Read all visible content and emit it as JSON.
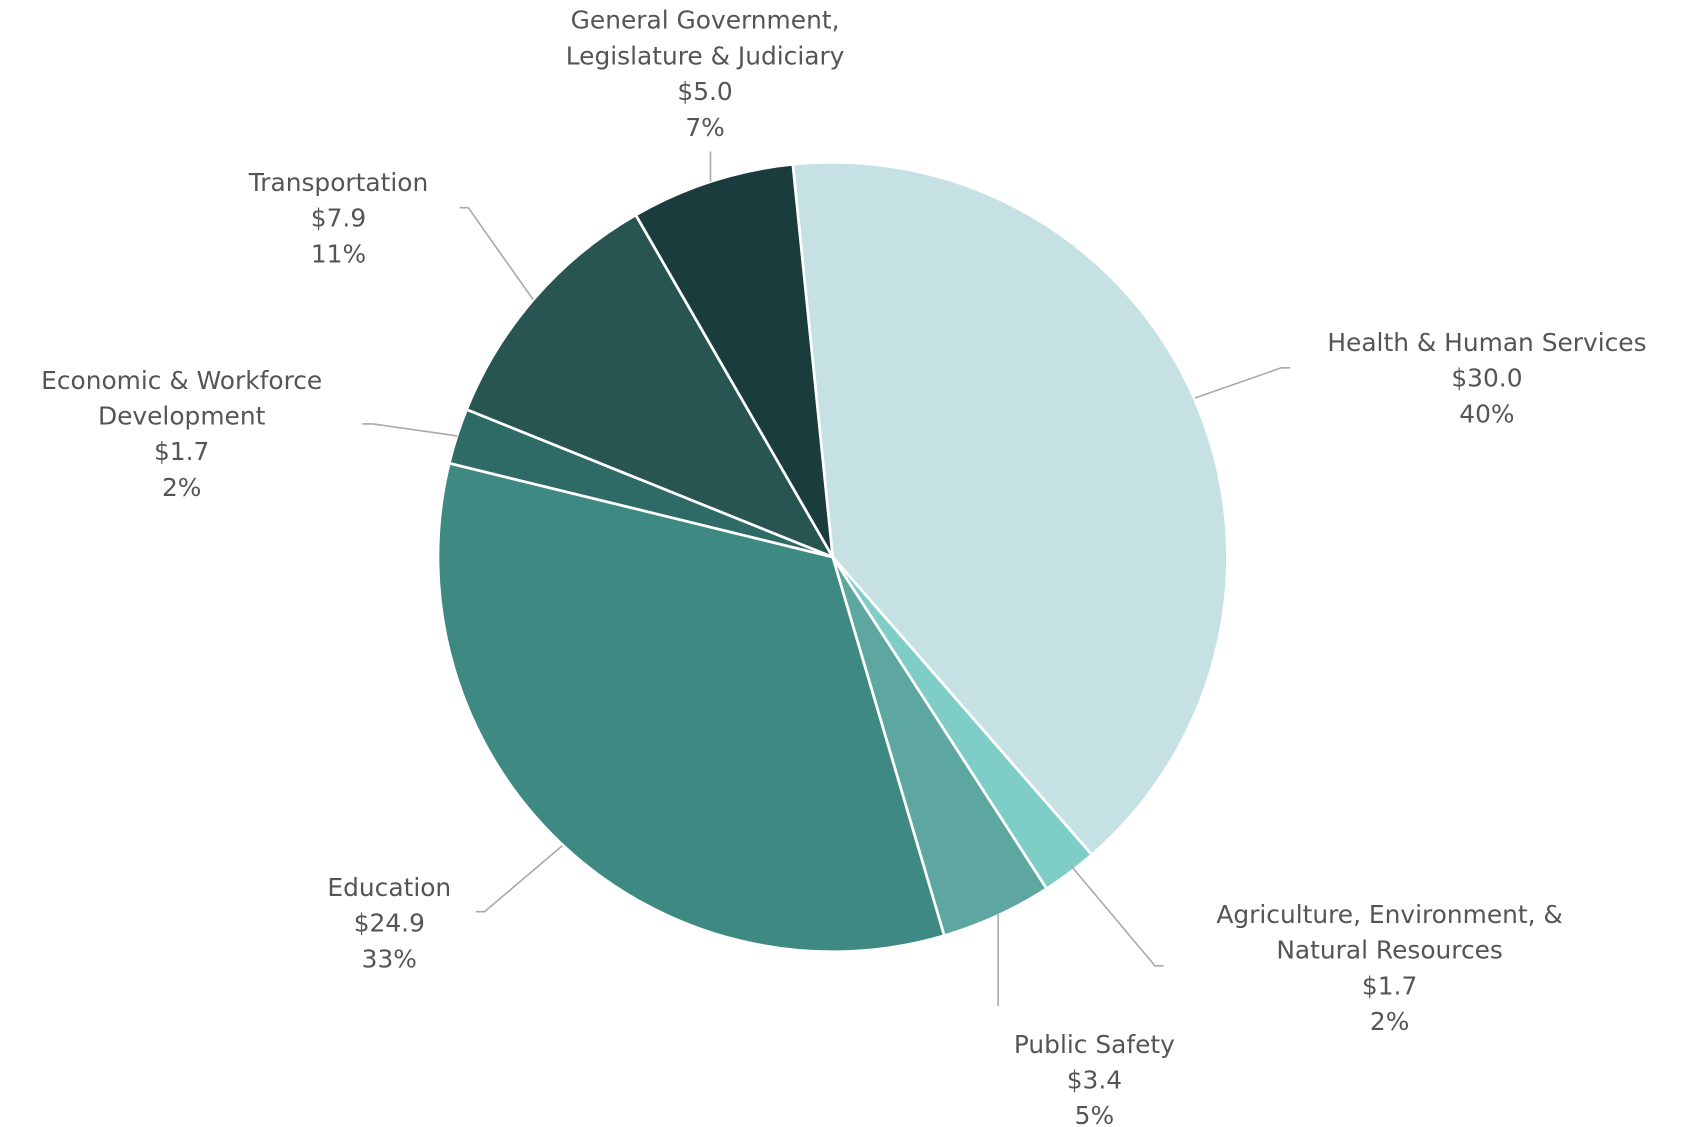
{
  "chart_data": {
    "type": "pie",
    "categories": [
      [
        "Health & Human Services"
      ],
      [
        "Agriculture, Environment, &",
        "Natural Resources"
      ],
      [
        "Public Safety"
      ],
      [
        "Education"
      ],
      [
        "Economic & Workforce",
        "Development"
      ],
      [
        "Transportation"
      ],
      [
        "General Government,",
        "Legislature & Judiciary"
      ]
    ],
    "values": [
      30.0,
      1.7,
      3.4,
      24.9,
      1.7,
      7.9,
      5.0
    ],
    "value_labels": [
      "$30.0",
      "$1.7",
      "$3.4",
      "$24.9",
      "$1.7",
      "$7.9",
      "$5.0"
    ],
    "percent_labels": [
      "40%",
      "2%",
      "5%",
      "33%",
      "2%",
      "11%",
      "7%"
    ],
    "colors": [
      "#c6e1e3",
      "#7ecec7",
      "#5ea6a0",
      "#3e8a83",
      "#2f6b66",
      "#285552",
      "#1b3c3c"
    ]
  }
}
